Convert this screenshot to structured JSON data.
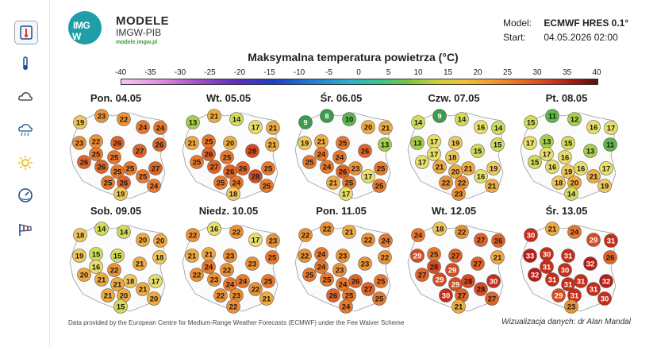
{
  "sidebar": {
    "items": [
      {
        "name": "thermometer-map-icon",
        "active": true
      },
      {
        "name": "thermometer-icon",
        "active": false
      },
      {
        "name": "cloud-icon",
        "active": false
      },
      {
        "name": "rain-cloud-icon",
        "active": false
      },
      {
        "name": "sun-icon",
        "active": false
      },
      {
        "name": "gauge-icon",
        "active": false
      },
      {
        "name": "windsock-icon",
        "active": false
      }
    ]
  },
  "header": {
    "logo_line1": "IMG",
    "logo_line2": "W",
    "brand_title": "MODELE",
    "brand_subtitle": "IMGW-PIB",
    "brand_url": "modele.imgw.pl",
    "model_label": "Model:",
    "model_value": "ECMWF HRES 0.1°",
    "start_label": "Start:",
    "start_value": "04.05.2026 02:00"
  },
  "chart_title": "Maksymalna temperatura powietrza (°C)",
  "scale": {
    "ticks": [
      "-40",
      "-35",
      "-30",
      "-25",
      "-20",
      "-15",
      "-10",
      "-5",
      "0",
      "5",
      "10",
      "15",
      "20",
      "25",
      "30",
      "35",
      "40"
    ],
    "min": -40,
    "max": 40
  },
  "chart_data": {
    "type": "map",
    "panels": [
      {
        "title": "Pon. 04.05",
        "values": [
          23,
          19,
          22,
          24,
          24,
          26,
          22,
          26,
          23,
          27,
          25,
          26,
          25,
          25,
          27,
          26,
          25,
          25,
          25,
          26,
          24,
          19
        ]
      },
      {
        "title": "Wt. 05.05",
        "values": [
          21,
          13,
          14,
          17,
          21,
          21,
          25,
          20,
          21,
          28,
          26,
          25,
          25,
          26,
          25,
          27,
          26,
          28,
          25,
          24,
          25,
          18
        ]
      },
      {
        "title": "Śr. 06.05",
        "values": [
          8,
          9,
          10,
          20,
          21,
          13,
          21,
          25,
          19,
          26,
          24,
          25,
          24,
          23,
          25,
          24,
          26,
          17,
          21,
          25,
          25,
          17
        ]
      },
      {
        "title": "Czw. 07.05",
        "values": [
          9,
          14,
          14,
          16,
          14,
          15,
          17,
          19,
          13,
          15,
          17,
          17,
          18,
          21,
          19,
          21,
          20,
          16,
          22,
          22,
          21,
          23
        ]
      },
      {
        "title": "Pt. 08.05",
        "values": [
          11,
          15,
          12,
          16,
          17,
          11,
          13,
          15,
          17,
          13,
          17,
          15,
          16,
          16,
          17,
          16,
          19,
          21,
          18,
          20,
          19,
          14
        ]
      },
      {
        "title": "Sob. 09.05",
        "values": [
          14,
          18,
          14,
          20,
          20,
          18,
          15,
          15,
          19,
          21,
          16,
          20,
          22,
          18,
          17,
          21,
          21,
          21,
          21,
          20,
          20,
          15
        ]
      },
      {
        "title": "Niedz. 10.05",
        "values": [
          16,
          22,
          22,
          17,
          23,
          25,
          21,
          23,
          21,
          23,
          24,
          22,
          22,
          24,
          25,
          23,
          24,
          22,
          22,
          23,
          21,
          22
        ]
      },
      {
        "title": "Pon. 11.05",
        "values": [
          22,
          22,
          21,
          22,
          24,
          22,
          24,
          23,
          22,
          23,
          24,
          25,
          23,
          26,
          25,
          25,
          24,
          27,
          26,
          25,
          25,
          24
        ]
      },
      {
        "title": "Wt. 12.05",
        "values": [
          18,
          24,
          22,
          27,
          26,
          21,
          25,
          27,
          29,
          27,
          28,
          27,
          29,
          28,
          30,
          29,
          29,
          28,
          30,
          27,
          27,
          21
        ]
      },
      {
        "title": "Śr. 13.05",
        "values": [
          21,
          30,
          24,
          29,
          31,
          26,
          30,
          31,
          33,
          32,
          31,
          32,
          30,
          31,
          32,
          31,
          31,
          31,
          29,
          31,
          30,
          23
        ]
      }
    ]
  },
  "footer": {
    "credit": "Data provided by the European Centre for Medium-Range Weather Forecasts (ECMWF) under the Fee Waiver Scheme",
    "visualization": "Wizualizacja danych: dr Alan Mandal"
  }
}
